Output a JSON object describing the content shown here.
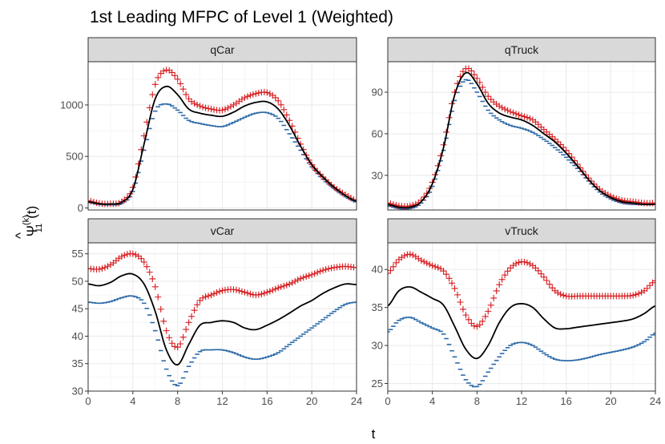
{
  "colors": {
    "upper": "#d7191c",
    "mean": "#000000",
    "lower": "#2c6aa8",
    "strip_bg": "#d9d9d9",
    "grid": "#ebebeb"
  },
  "chart_data": {
    "type": "line",
    "title": "1st Leading MFPC of Level 1 (Weighted)",
    "xlabel": "t",
    "ylabel": "Ψ̂11(k)(t)",
    "ylabel_parts": {
      "psi": "Ψ",
      "hat": "^",
      "sup": "(k)",
      "sub": "11",
      "arg": "(t)"
    },
    "x_ticks": [
      "0",
      "4",
      "8",
      "12",
      "16",
      "20",
      "24"
    ],
    "xlim": [
      0,
      24
    ],
    "series_style": [
      {
        "key": "upper",
        "marker": "+",
        "color": "#d7191c"
      },
      {
        "key": "mean",
        "marker": "line",
        "color": "#000000"
      },
      {
        "key": "lower",
        "marker": "-",
        "color": "#2c6aa8"
      }
    ],
    "panels": [
      {
        "strip": "qCar",
        "ylim": [
          -20,
          1420
        ],
        "y_ticks": [
          "0",
          "500",
          "1000"
        ],
        "y_tick_values": [
          0,
          500,
          1000
        ],
        "x": [
          0,
          1,
          2,
          3,
          4,
          5,
          6,
          7,
          8,
          9,
          10,
          11,
          12,
          13,
          14,
          15,
          16,
          17,
          18,
          19,
          20,
          21,
          22,
          23,
          24
        ],
        "upper": [
          70,
          45,
          40,
          60,
          200,
          700,
          1200,
          1340,
          1250,
          1060,
          990,
          960,
          950,
          1000,
          1070,
          1110,
          1120,
          1040,
          850,
          620,
          420,
          300,
          200,
          130,
          70
        ],
        "mean": [
          60,
          40,
          38,
          55,
          180,
          620,
          1060,
          1180,
          1100,
          960,
          920,
          900,
          890,
          930,
          990,
          1025,
          1030,
          960,
          800,
          600,
          420,
          300,
          200,
          120,
          65
        ],
        "lower": [
          55,
          35,
          30,
          45,
          160,
          560,
          940,
          1010,
          950,
          850,
          820,
          800,
          790,
          830,
          880,
          920,
          925,
          870,
          720,
          560,
          400,
          280,
          190,
          110,
          60
        ]
      },
      {
        "strip": "qTruck",
        "ylim": [
          5,
          112
        ],
        "y_ticks": [
          "30",
          "60",
          "90"
        ],
        "y_tick_values": [
          30,
          60,
          90
        ],
        "x": [
          0,
          1,
          2,
          3,
          4,
          5,
          6,
          7,
          8,
          9,
          10,
          11,
          12,
          13,
          14,
          15,
          16,
          17,
          18,
          19,
          20,
          21,
          22,
          23,
          24
        ],
        "upper": [
          10,
          8,
          8,
          12,
          25,
          52,
          90,
          107,
          100,
          87,
          80,
          76,
          73,
          70,
          63,
          56,
          48,
          38,
          28,
          20,
          15,
          12,
          11,
          10,
          10
        ],
        "mean": [
          9,
          7,
          7,
          11,
          24,
          50,
          88,
          104,
          96,
          82,
          75,
          72,
          70,
          66,
          60,
          54,
          46,
          37,
          27,
          19,
          14,
          11,
          10,
          9,
          9
        ],
        "lower": [
          8,
          6,
          6,
          10,
          22,
          48,
          84,
          99,
          90,
          77,
          70,
          66,
          64,
          61,
          56,
          50,
          43,
          35,
          26,
          18,
          13,
          10,
          9,
          9,
          9
        ]
      },
      {
        "strip": "vCar",
        "ylim": [
          30,
          57
        ],
        "y_ticks": [
          "30",
          "35",
          "40",
          "45",
          "50",
          "55"
        ],
        "y_tick_values": [
          30,
          35,
          40,
          45,
          50,
          55
        ],
        "x": [
          0,
          1,
          2,
          3,
          4,
          5,
          6,
          7,
          8,
          9,
          10,
          11,
          12,
          13,
          14,
          15,
          16,
          17,
          18,
          19,
          20,
          21,
          22,
          23,
          24
        ],
        "upper": [
          52.3,
          52.2,
          53,
          54.5,
          55,
          53.5,
          49,
          41,
          38,
          42.5,
          46.5,
          47.5,
          48.3,
          48.5,
          48,
          47.5,
          48,
          48.8,
          49.5,
          50.5,
          51.2,
          52,
          52.5,
          52.7,
          52.5
        ],
        "mean": [
          49.5,
          49.2,
          49.8,
          51,
          51.3,
          49.5,
          44.5,
          37.5,
          34.8,
          38.5,
          42,
          42.5,
          42.8,
          42.5,
          41.5,
          41.2,
          42,
          43,
          44.2,
          45.5,
          46.5,
          47.8,
          48.8,
          49.5,
          49.4
        ],
        "lower": [
          46.2,
          46,
          46.3,
          47,
          47.3,
          46,
          41,
          34,
          31,
          34.5,
          37.2,
          37.5,
          37.5,
          37,
          36.2,
          35.8,
          36.2,
          37,
          38.5,
          40,
          41.5,
          43,
          44.5,
          45.8,
          46.2
        ]
      },
      {
        "strip": "vTruck",
        "ylim": [
          24,
          43.5
        ],
        "y_ticks": [
          "25",
          "30",
          "35",
          "40"
        ],
        "y_tick_values": [
          25,
          30,
          35,
          40
        ],
        "x": [
          0,
          1,
          2,
          3,
          4,
          5,
          6,
          7,
          8,
          9,
          10,
          11,
          12,
          13,
          14,
          15,
          16,
          17,
          18,
          19,
          20,
          21,
          22,
          23,
          24
        ],
        "upper": [
          39.5,
          41.3,
          42,
          41.2,
          40.5,
          39.8,
          37.5,
          34,
          32.5,
          34.5,
          38,
          40.2,
          41,
          40.5,
          39,
          37.2,
          36.5,
          36.5,
          36.5,
          36.5,
          36.5,
          36.5,
          36.6,
          37.2,
          38.5
        ],
        "mean": [
          35.2,
          37.2,
          37.7,
          37,
          36.2,
          35.3,
          32.5,
          29.5,
          28.3,
          30,
          33,
          35,
          35.5,
          35,
          33.5,
          32.3,
          32.2,
          32.4,
          32.6,
          32.8,
          33,
          33.2,
          33.5,
          34.2,
          35.2
        ],
        "lower": [
          31.8,
          33.3,
          33.7,
          33,
          32.3,
          31.5,
          28.5,
          25.5,
          24.6,
          26.5,
          28.5,
          30,
          30.4,
          30,
          29,
          28.2,
          28,
          28.1,
          28.4,
          28.8,
          29.1,
          29.4,
          29.8,
          30.5,
          31.6
        ]
      }
    ]
  }
}
